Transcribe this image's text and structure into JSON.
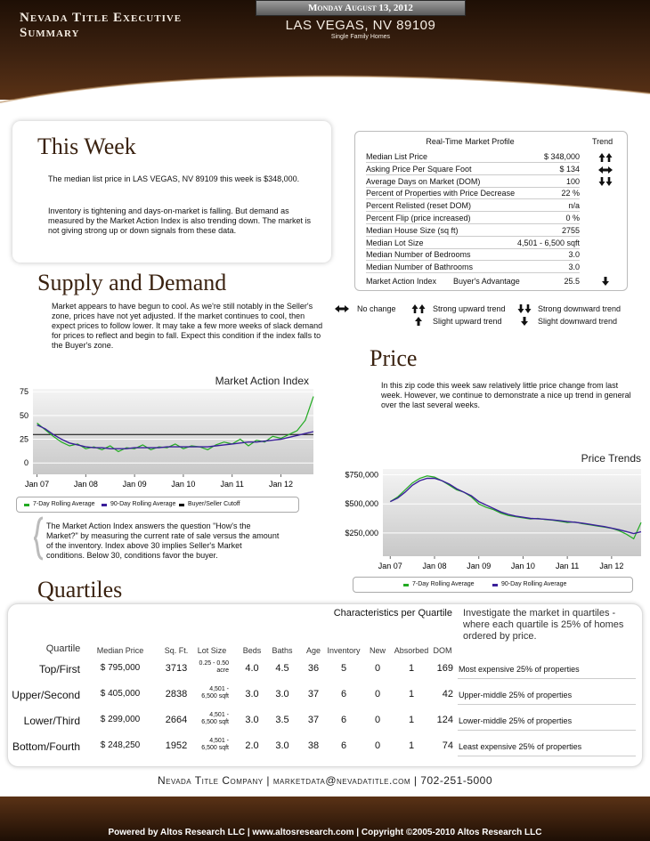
{
  "header": {
    "title": "Nevada Title Executive Summary",
    "date": "Monday August 13, 2012",
    "location": "LAS VEGAS, NV 89109",
    "subtitle": "Single Family Homes"
  },
  "this_week": {
    "heading": "This Week",
    "paragraphs": [
      "The median list price in LAS VEGAS, NV 89109 this week is $348,000.",
      "Inventory is tightening and days-on-market is falling. But demand as measured by the Market Action Index is also trending down. The market is not giving strong up or down signals from these data."
    ]
  },
  "market_profile": {
    "title": "Real-Time Market Profile",
    "trend_header": "Trend",
    "rows": [
      {
        "label": "Median List Price",
        "value": "$ 348,000"
      },
      {
        "label": "Asking Price Per Square Foot",
        "value": "$ 134"
      },
      {
        "label": "Average Days on Market (DOM)",
        "value": "100"
      },
      {
        "label": "Percent of Properties with Price Decrease",
        "value": "22 %"
      },
      {
        "label": "Percent Relisted (reset DOM)",
        "value": "n/a"
      },
      {
        "label": "Percent Flip (price increased)",
        "value": "0 %"
      },
      {
        "label": "Median House Size (sq ft)",
        "value": "2755"
      },
      {
        "label": "Median Lot Size",
        "value": "4,501 - 6,500 sqft"
      },
      {
        "label": "Median Number of Bedrooms",
        "value": "3.0"
      },
      {
        "label": "Median Number of Bathrooms",
        "value": "3.0"
      }
    ],
    "mai_row": {
      "label": "Market Action Index",
      "note": "Buyer's Advantage",
      "value": "25.5"
    },
    "legend": [
      "No change",
      "Strong upward trend",
      "Strong downward trend",
      "Slight upward trend",
      "Slight downward trend"
    ]
  },
  "supply_demand": {
    "heading": "Supply and Demand",
    "text": "Market appears to have begun to cool.  As we're still notably in the Seller's zone, prices have not yet adjusted.  If the market continues to cool, then expect prices to follow lower. It may take a few more weeks of slack demand for prices to reflect and begin to fall.  Expect this condition if the index falls to the Buyer's zone.",
    "explanation": "The Market Action Index answers the question \"How's the Market?\" by measuring the current rate of sale versus the amount of the inventory.  Index above 30 implies Seller's Market conditions. Below 30, conditions favor the buyer."
  },
  "price": {
    "heading": "Price",
    "text": "In this zip code this week saw relatively little price change from last week. However, we continue to demonstrate a nice up trend in general over the last several weeks."
  },
  "chart_data": [
    {
      "type": "line",
      "title": "Market Action Index",
      "x": [
        0,
        2,
        4,
        6,
        8,
        10,
        12,
        14,
        16,
        18,
        20,
        22,
        24,
        26,
        28,
        30,
        32,
        34,
        36,
        38,
        40,
        42,
        44,
        46,
        48,
        50,
        52,
        54,
        56,
        58,
        60,
        62,
        64,
        66,
        68
      ],
      "xlim": [
        -1,
        68
      ],
      "xticks": [
        {
          "value": 0,
          "label": "Jan 07"
        },
        {
          "value": 12,
          "label": "Jan 08"
        },
        {
          "value": 24,
          "label": "Jan 09"
        },
        {
          "value": 36,
          "label": "Jan 10"
        },
        {
          "value": 48,
          "label": "Jan 11"
        },
        {
          "value": 60,
          "label": "Jan 12"
        }
      ],
      "ylim": [
        -12,
        78
      ],
      "yticks": [
        0,
        25,
        50,
        75
      ],
      "grid": true,
      "series": [
        {
          "name": "7-Day Rolling Average",
          "color": "#22aa22",
          "values": [
            42,
            35,
            28,
            22,
            18,
            20,
            15,
            17,
            14,
            18,
            12,
            16,
            15,
            19,
            14,
            17,
            16,
            20,
            15,
            18,
            17,
            14,
            19,
            22,
            20,
            25,
            18,
            24,
            22,
            28,
            26,
            30,
            34,
            45,
            70
          ]
        },
        {
          "name": "90-Day Rolling Average",
          "color": "#3a1f9a",
          "values": [
            40,
            36,
            30,
            25,
            21,
            19,
            17,
            16,
            16,
            15,
            15,
            15,
            16,
            16,
            16,
            16,
            17,
            17,
            17,
            17,
            17,
            17,
            18,
            19,
            20,
            21,
            22,
            22,
            23,
            24,
            25,
            27,
            29,
            31,
            33
          ]
        }
      ],
      "cutoff": {
        "name": "Buyer/Seller Cutoff",
        "color": "#000000",
        "value": 30
      }
    },
    {
      "type": "line",
      "title": "Price Trends",
      "x": [
        0,
        2,
        4,
        6,
        8,
        10,
        12,
        14,
        16,
        18,
        20,
        22,
        24,
        26,
        28,
        30,
        32,
        34,
        36,
        38,
        40,
        42,
        44,
        46,
        48,
        50,
        52,
        54,
        56,
        58,
        60,
        62,
        64,
        66,
        68
      ],
      "xlim": [
        -2,
        68
      ],
      "xticks": [
        {
          "value": 0,
          "label": "Jan 07"
        },
        {
          "value": 12,
          "label": "Jan 08"
        },
        {
          "value": 24,
          "label": "Jan 09"
        },
        {
          "value": 36,
          "label": "Jan 10"
        },
        {
          "value": 48,
          "label": "Jan 11"
        },
        {
          "value": 60,
          "label": "Jan 12"
        }
      ],
      "ylim": [
        50000,
        800000
      ],
      "yticks": [
        {
          "value": 250000,
          "label": "$250,000"
        },
        {
          "value": 500000,
          "label": "$500,000"
        },
        {
          "value": 750000,
          "label": "$750,000"
        }
      ],
      "grid": true,
      "series": [
        {
          "name": "7-Day Rolling Average",
          "color": "#22aa22",
          "values": [
            520000,
            560000,
            620000,
            680000,
            720000,
            740000,
            730000,
            700000,
            660000,
            620000,
            600000,
            560000,
            500000,
            470000,
            450000,
            420000,
            400000,
            390000,
            380000,
            370000,
            375000,
            365000,
            360000,
            350000,
            340000,
            345000,
            330000,
            320000,
            310000,
            300000,
            290000,
            270000,
            240000,
            200000,
            340000
          ]
        },
        {
          "name": "90-Day Rolling Average",
          "color": "#3a1f9a",
          "values": [
            520000,
            550000,
            600000,
            660000,
            700000,
            720000,
            720000,
            700000,
            670000,
            630000,
            600000,
            570000,
            520000,
            490000,
            460000,
            430000,
            410000,
            395000,
            385000,
            375000,
            372000,
            368000,
            362000,
            355000,
            348000,
            342000,
            335000,
            325000,
            315000,
            305000,
            292000,
            278000,
            262000,
            245000,
            260000
          ]
        }
      ]
    }
  ],
  "quartiles": {
    "heading": "Quartiles",
    "caption": "Characteristics per Quartile",
    "side_text": "Investigate the market in quartiles - where each quartile is 25% of homes ordered by price.",
    "columns": [
      "Quartile",
      "Median Price",
      "Sq. Ft.",
      "Lot Size",
      "Beds",
      "Baths",
      "Age",
      "Inventory",
      "New",
      "Absorbed",
      "DOM"
    ],
    "rows": [
      [
        "Top/First",
        "$ 795,000",
        "3713",
        "0.25 - 0.50 acre",
        "4.0",
        "4.5",
        "36",
        "5",
        "0",
        "1",
        "169",
        "Most expensive 25% of properties"
      ],
      [
        "Upper/Second",
        "$ 405,000",
        "2838",
        "4,501 - 6,500 sqft",
        "3.0",
        "3.0",
        "37",
        "6",
        "0",
        "1",
        "42",
        "Upper-middle 25% of properties"
      ],
      [
        "Lower/Third",
        "$ 299,000",
        "2664",
        "4,501 - 6,500 sqft",
        "3.0",
        "3.5",
        "37",
        "6",
        "0",
        "1",
        "124",
        "Lower-middle 25% of properties"
      ],
      [
        "Bottom/Fourth",
        "$ 248,250",
        "1952",
        "4,501 - 6,500 sqft",
        "2.0",
        "3.0",
        "38",
        "6",
        "0",
        "1",
        "74",
        "Least expensive 25% of properties"
      ]
    ]
  },
  "footer": {
    "contact": "Nevada Title Company | marketdata@nevadatitle.com | 702-251-5000",
    "powered": "Powered by Altos Research LLC | www.altosresearch.com | Copyright ©2005-2010 Altos Research LLC"
  }
}
